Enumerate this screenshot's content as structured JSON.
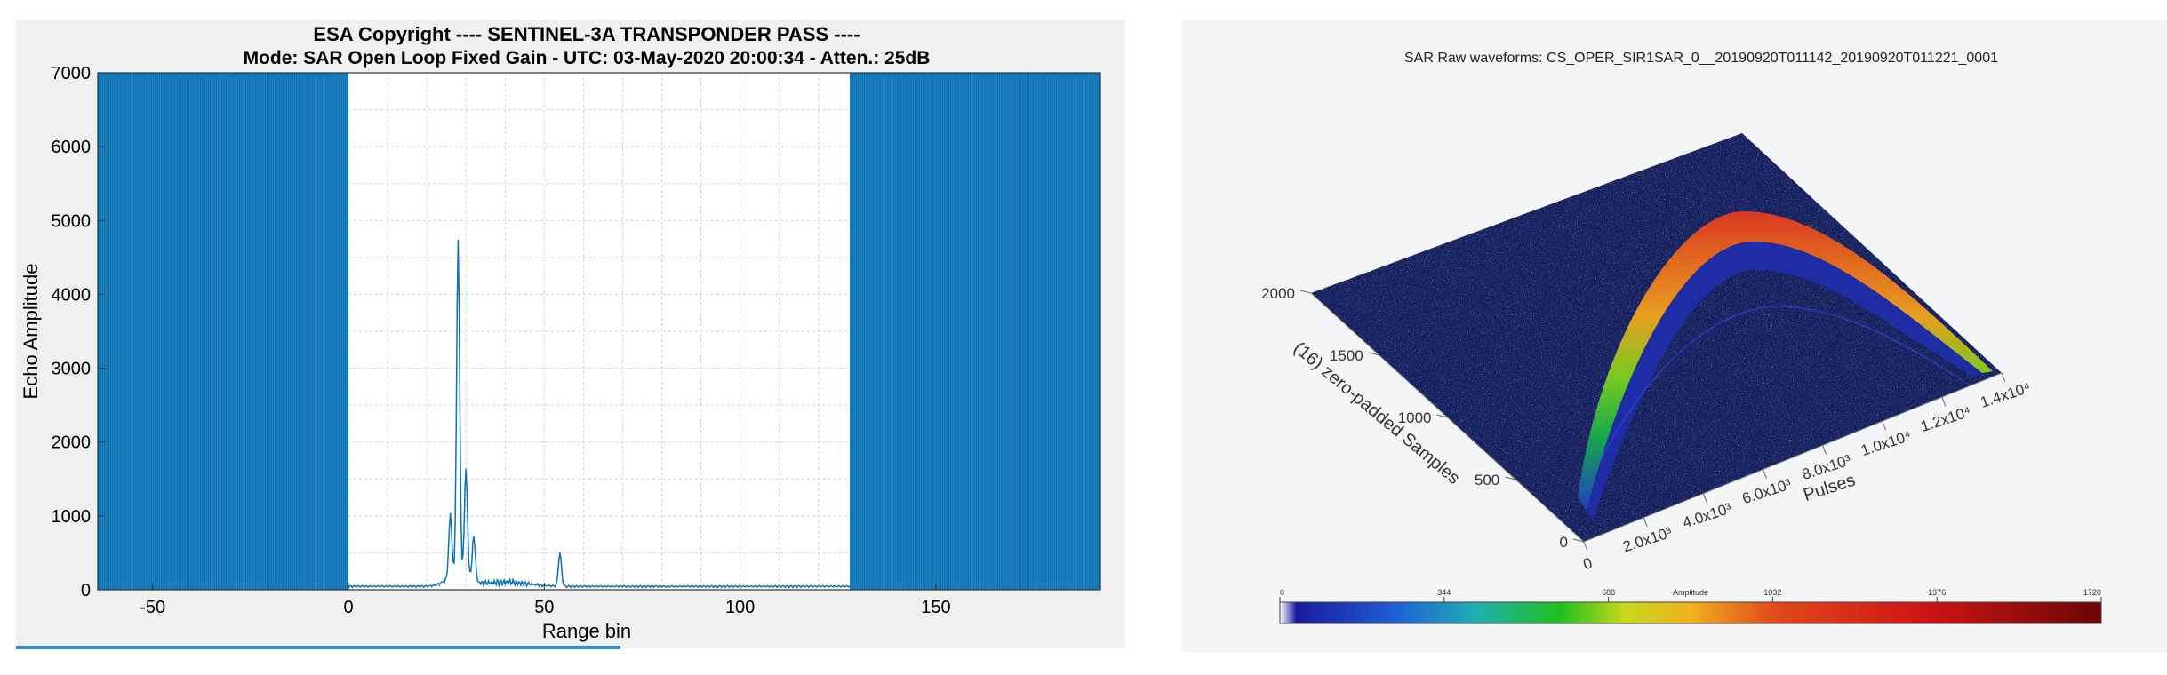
{
  "chart_data": [
    {
      "type": "line",
      "title": "ESA Copyright  ---- SENTINEL-3A TRANSPONDER PASS ----",
      "subtitle": "Mode: SAR Open Loop Fixed Gain    -    UTC: 03-May-2020 20:00:34    -    Atten.: 25dB",
      "xlabel": "Range bin",
      "ylabel": "Echo Amplitude",
      "xlim": [
        -64,
        192
      ],
      "ylim": [
        0,
        7000
      ],
      "xticks": [
        -50,
        0,
        50,
        100,
        150
      ],
      "yticks": [
        0,
        1000,
        2000,
        3000,
        4000,
        5000,
        6000,
        7000
      ],
      "grid": true,
      "filled_regions": [
        {
          "x_range": [
            -64,
            0
          ],
          "y_max": 7000
        },
        {
          "x_range": [
            128,
            192
          ],
          "y_max": 7000
        }
      ],
      "peaks": [
        {
          "x": 26,
          "y": 850
        },
        {
          "x": 28,
          "y": 4500
        },
        {
          "x": 30,
          "y": 1450
        },
        {
          "x": 32,
          "y": 600
        },
        {
          "x": 54,
          "y": 450
        }
      ],
      "color": "#0b72b5"
    },
    {
      "type": "scatter",
      "title": "SAR Raw waveforms: CS_OPER_SIR1SAR_0__20190920T011142_20190920T011221_0001",
      "xlabel": "Pulses",
      "ylabel": "(16) zero-padded Samples",
      "xticks": [
        "0",
        "2.0x10³",
        "4.0x10³",
        "6.0x10³",
        "8.0x10³",
        "1.0x10⁴",
        "1.2x10⁴",
        "1.4x10⁴"
      ],
      "yticks": [
        "0",
        "500",
        "1000",
        "1500",
        "2000"
      ],
      "colorbar": {
        "label": "Amplitude",
        "ticks": [
          "0",
          "344",
          "688",
          "1032",
          "1376",
          "1720"
        ]
      }
    }
  ]
}
